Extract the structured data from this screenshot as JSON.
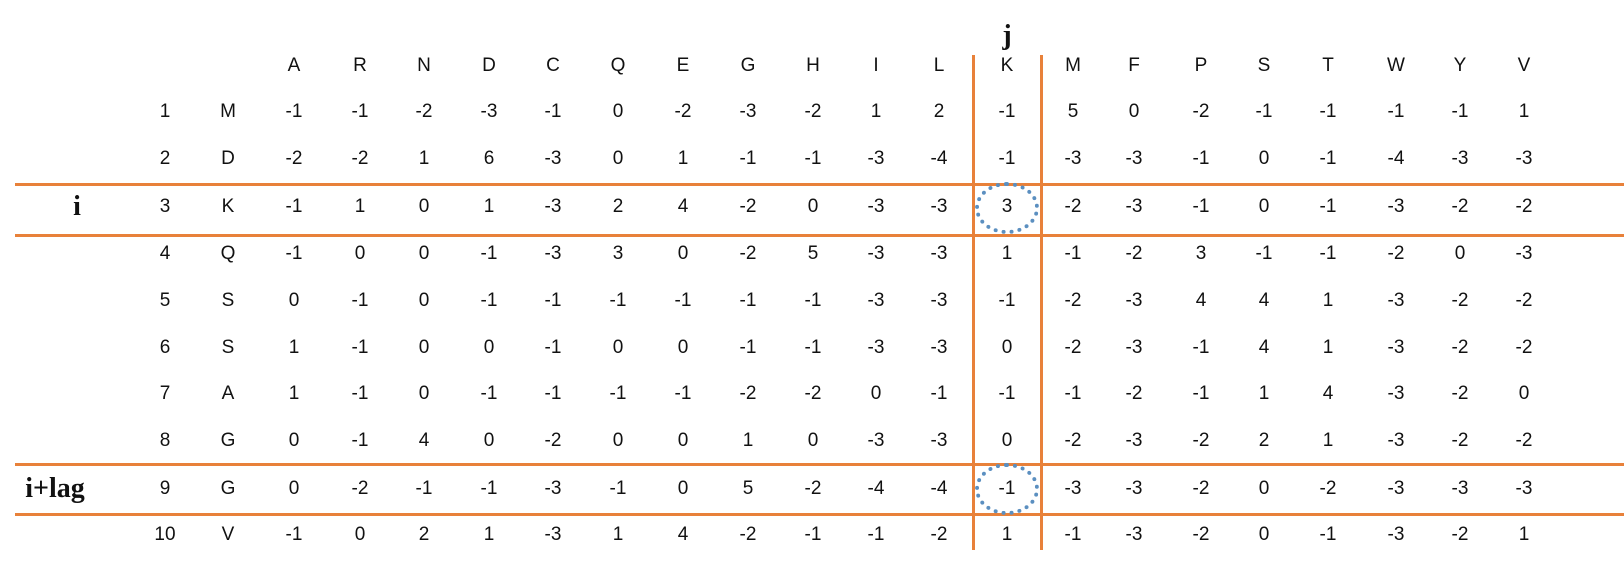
{
  "labels": {
    "j": "j",
    "i": "i",
    "i_lag": "i+lag"
  },
  "columns": [
    "A",
    "R",
    "N",
    "D",
    "C",
    "Q",
    "E",
    "G",
    "H",
    "I",
    "L",
    "K",
    "M",
    "F",
    "P",
    "S",
    "T",
    "W",
    "Y",
    "V"
  ],
  "rows": [
    {
      "pos": "1",
      "aa": "M",
      "values": [
        "-1",
        "-1",
        "-2",
        "-3",
        "-1",
        "0",
        "-2",
        "-3",
        "-2",
        "1",
        "2",
        "-1",
        "5",
        "0",
        "-2",
        "-1",
        "-1",
        "-1",
        "-1",
        "1"
      ]
    },
    {
      "pos": "2",
      "aa": "D",
      "values": [
        "-2",
        "-2",
        "1",
        "6",
        "-3",
        "0",
        "1",
        "-1",
        "-1",
        "-3",
        "-4",
        "-1",
        "-3",
        "-3",
        "-1",
        "0",
        "-1",
        "-4",
        "-3",
        "-3"
      ]
    },
    {
      "pos": "3",
      "aa": "K",
      "values": [
        "-1",
        "1",
        "0",
        "1",
        "-3",
        "2",
        "4",
        "-2",
        "0",
        "-3",
        "-3",
        "3",
        "-2",
        "-3",
        "-1",
        "0",
        "-1",
        "-3",
        "-2",
        "-2"
      ]
    },
    {
      "pos": "4",
      "aa": "Q",
      "values": [
        "-1",
        "0",
        "0",
        "-1",
        "-3",
        "3",
        "0",
        "-2",
        "5",
        "-3",
        "-3",
        "1",
        "-1",
        "-2",
        "3",
        "-1",
        "-1",
        "-2",
        "0",
        "-3"
      ]
    },
    {
      "pos": "5",
      "aa": "S",
      "values": [
        "0",
        "-1",
        "0",
        "-1",
        "-1",
        "-1",
        "-1",
        "-1",
        "-1",
        "-3",
        "-3",
        "-1",
        "-2",
        "-3",
        "4",
        "4",
        "1",
        "-3",
        "-2",
        "-2"
      ]
    },
    {
      "pos": "6",
      "aa": "S",
      "values": [
        "1",
        "-1",
        "0",
        "0",
        "-1",
        "0",
        "0",
        "-1",
        "-1",
        "-3",
        "-3",
        "0",
        "-2",
        "-3",
        "-1",
        "4",
        "1",
        "-3",
        "-2",
        "-2"
      ]
    },
    {
      "pos": "7",
      "aa": "A",
      "values": [
        "1",
        "-1",
        "0",
        "-1",
        "-1",
        "-1",
        "-1",
        "-2",
        "-2",
        "0",
        "-1",
        "-1",
        "-1",
        "-2",
        "-1",
        "1",
        "4",
        "-3",
        "-2",
        "0"
      ]
    },
    {
      "pos": "8",
      "aa": "G",
      "values": [
        "0",
        "-1",
        "4",
        "0",
        "-2",
        "0",
        "0",
        "1",
        "0",
        "-3",
        "-3",
        "0",
        "-2",
        "-3",
        "-2",
        "2",
        "1",
        "-3",
        "-2",
        "-2"
      ]
    },
    {
      "pos": "9",
      "aa": "G",
      "values": [
        "0",
        "-2",
        "-1",
        "-1",
        "-3",
        "-1",
        "0",
        "5",
        "-2",
        "-4",
        "-4",
        "-1",
        "-3",
        "-3",
        "-2",
        "0",
        "-2",
        "-3",
        "-3",
        "-3"
      ]
    },
    {
      "pos": "10",
      "aa": "V",
      "values": [
        "-1",
        "0",
        "2",
        "1",
        "-3",
        "1",
        "4",
        "-2",
        "-1",
        "-1",
        "-2",
        "1",
        "-1",
        "-3",
        "-2",
        "0",
        "-1",
        "-3",
        "-2",
        "1"
      ]
    }
  ],
  "highlight": {
    "column": "K",
    "rows": [
      "3",
      "9"
    ],
    "line_color": "#e8813a",
    "circle_color": "#5b8fc0"
  }
}
